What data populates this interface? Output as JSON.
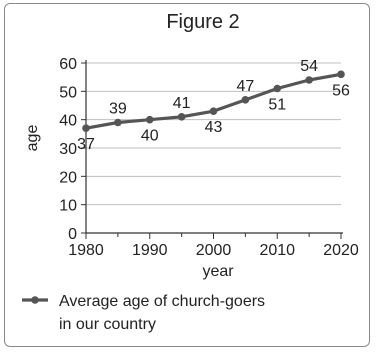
{
  "chart_data": {
    "type": "line",
    "title": "Figure 2",
    "xlabel": "year",
    "ylabel": "age",
    "x": [
      1980,
      1985,
      1990,
      1995,
      2000,
      2005,
      2010,
      2015,
      2020
    ],
    "series": [
      {
        "name": "Average age of church-goers in our country",
        "legend_lines": [
          "Average age of church-goers",
          "in our country"
        ],
        "values": [
          37,
          39,
          40,
          41,
          43,
          47,
          51,
          54,
          56
        ],
        "labels": [
          "37",
          "39",
          "40",
          "41",
          "43",
          "47",
          "51",
          "54",
          "56"
        ],
        "label_positions": [
          "below",
          "above",
          "below",
          "above",
          "below",
          "above",
          "below",
          "above",
          "below"
        ]
      }
    ],
    "xticks": [
      1980,
      1990,
      2000,
      2010,
      2020
    ],
    "yticks": [
      0,
      10,
      20,
      30,
      40,
      50,
      60
    ],
    "xlim": [
      1980,
      2020
    ],
    "ylim": [
      0,
      60
    ],
    "grid": "horizontal",
    "legend_position": "bottom",
    "colors": {
      "line": "#555555",
      "grid": "#bfbfbf",
      "axis": "#333333"
    }
  }
}
